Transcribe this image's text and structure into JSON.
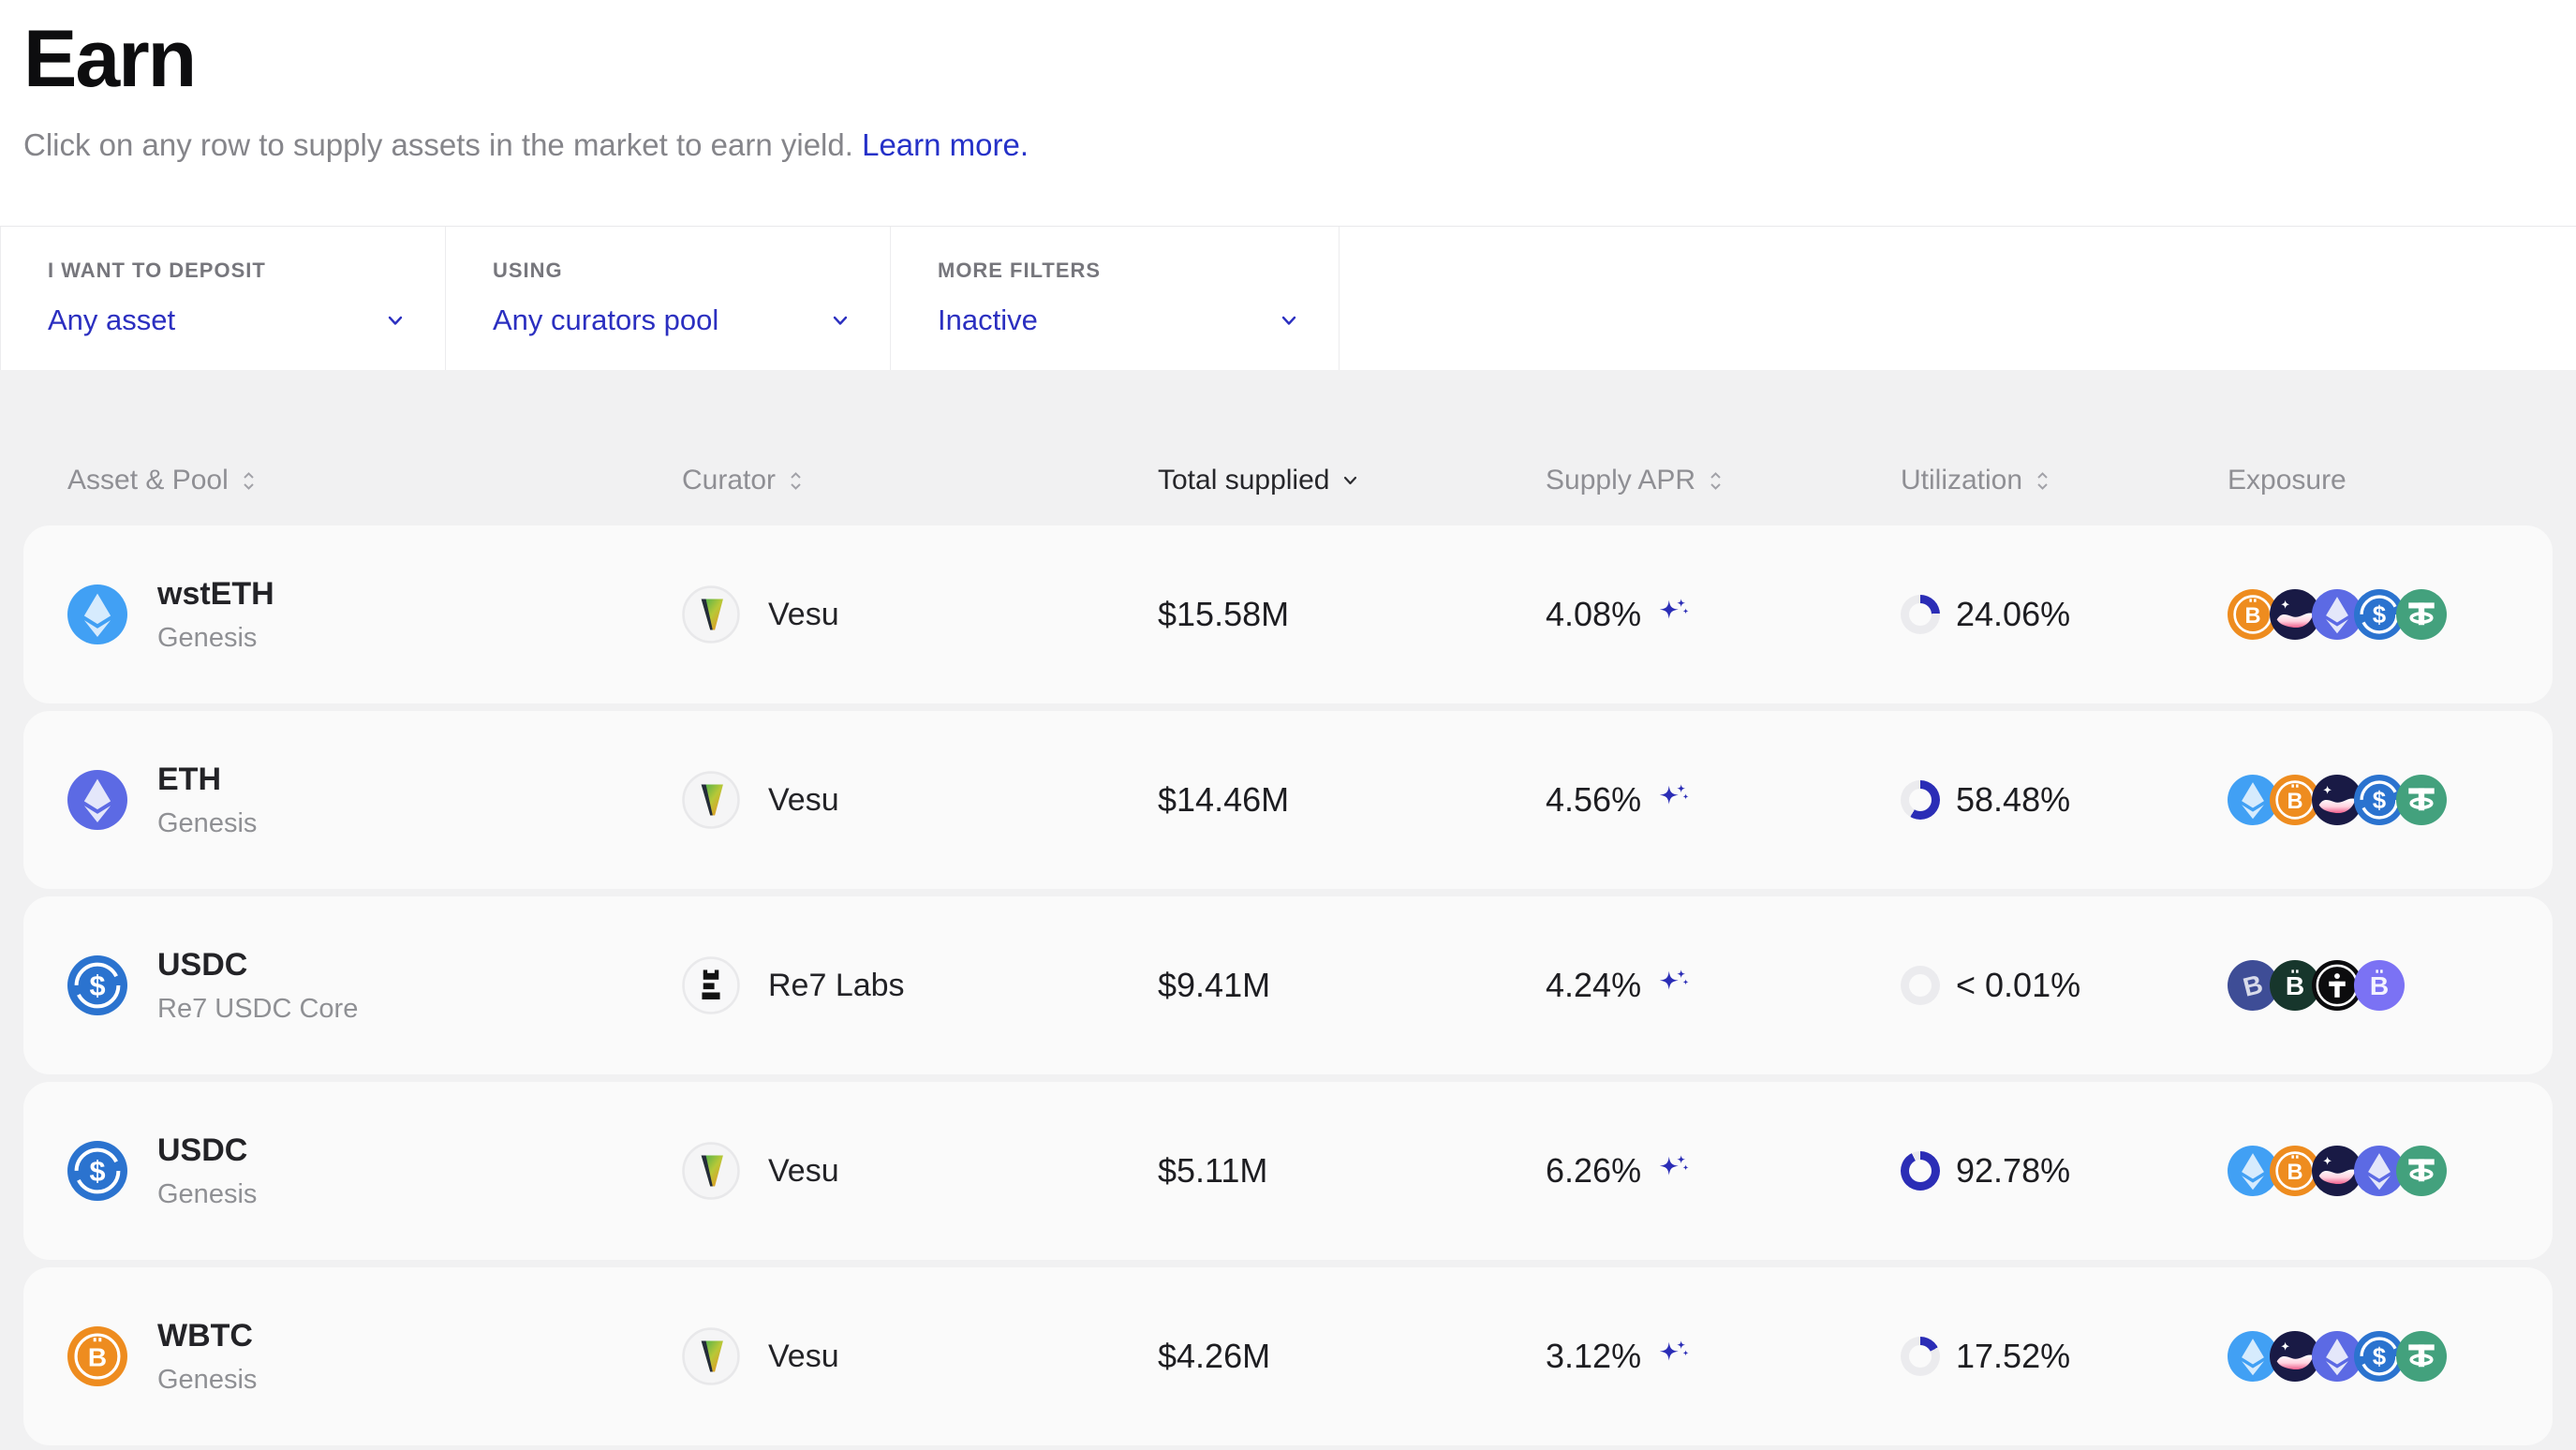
{
  "accent": "#2b2fc0",
  "page": {
    "title": "Earn",
    "subtitle": "Click on any row to supply assets in the market to earn yield.",
    "learn_more": "Learn more."
  },
  "filters": [
    {
      "label": "I WANT TO DEPOSIT",
      "value": "Any asset"
    },
    {
      "label": "USING",
      "value": "Any curators pool"
    },
    {
      "label": "MORE FILTERS",
      "value": "Inactive"
    }
  ],
  "table": {
    "columns": [
      {
        "label": "Asset & Pool",
        "sortable": true
      },
      {
        "label": "Curator",
        "sortable": true
      },
      {
        "label": "Total supplied",
        "sortable": true,
        "sorted": "desc"
      },
      {
        "label": "Supply APR",
        "sortable": true
      },
      {
        "label": "Utilization",
        "sortable": true
      },
      {
        "label": "Exposure",
        "sortable": false
      }
    ],
    "rows": [
      {
        "asset": "wstETH",
        "pool": "Genesis",
        "asset_token": "wsteth",
        "curator": "Vesu",
        "curator_token": "vesu",
        "total_supplied": "$15.58M",
        "supply_apr": "4.08%",
        "utilization": "24.06%",
        "utilization_pct": 24.06,
        "exposure": [
          "wbtc",
          "strk",
          "eth",
          "usdc",
          "usdt"
        ]
      },
      {
        "asset": "ETH",
        "pool": "Genesis",
        "asset_token": "eth",
        "curator": "Vesu",
        "curator_token": "vesu",
        "total_supplied": "$14.46M",
        "supply_apr": "4.56%",
        "utilization": "58.48%",
        "utilization_pct": 58.48,
        "exposure": [
          "wsteth",
          "wbtc",
          "strk",
          "usdc",
          "usdt"
        ]
      },
      {
        "asset": "USDC",
        "pool": "Re7 USDC Core",
        "asset_token": "usdc",
        "curator": "Re7 Labs",
        "curator_token": "re7",
        "total_supplied": "$9.41M",
        "supply_apr": "4.24%",
        "utilization": "< 0.01%",
        "utilization_pct": 0,
        "exposure": [
          "solvbtc",
          "lbtc",
          "tbtc",
          "unibtc"
        ]
      },
      {
        "asset": "USDC",
        "pool": "Genesis",
        "asset_token": "usdc",
        "curator": "Vesu",
        "curator_token": "vesu",
        "total_supplied": "$5.11M",
        "supply_apr": "6.26%",
        "utilization": "92.78%",
        "utilization_pct": 92.78,
        "exposure": [
          "wsteth",
          "wbtc",
          "strk",
          "eth",
          "usdt"
        ]
      },
      {
        "asset": "WBTC",
        "pool": "Genesis",
        "asset_token": "wbtc",
        "curator": "Vesu",
        "curator_token": "vesu",
        "total_supplied": "$4.26M",
        "supply_apr": "3.12%",
        "utilization": "17.52%",
        "utilization_pct": 17.52,
        "exposure": [
          "wsteth",
          "strk",
          "eth",
          "usdc",
          "usdt"
        ]
      }
    ]
  }
}
